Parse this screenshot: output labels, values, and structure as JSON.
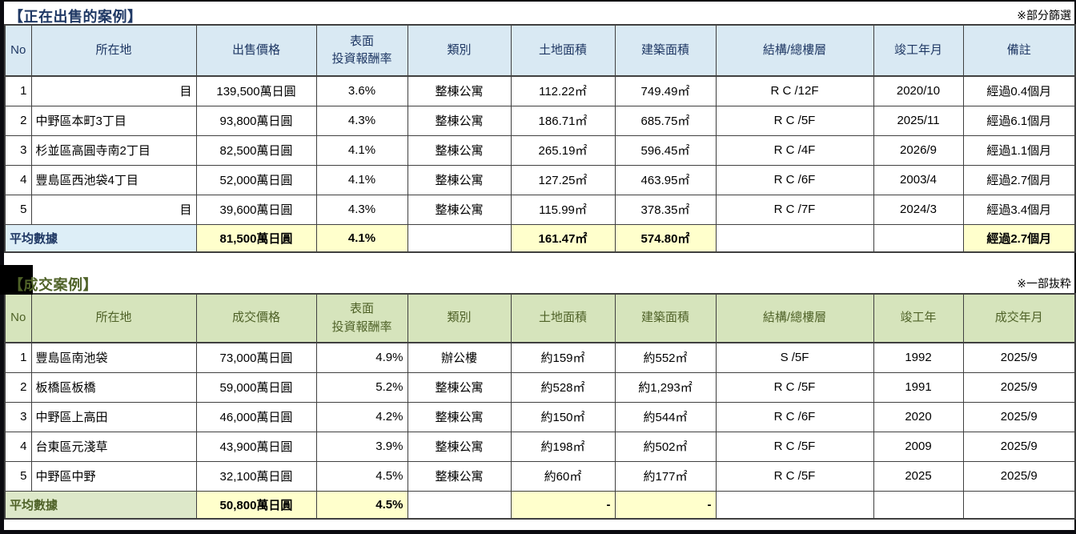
{
  "theme": {
    "navy": "#1f3864",
    "blue_header_bg": "#d9e9f3",
    "blue_label_bg": "#ddeef7",
    "green": "#4f6228",
    "green_header_bg": "#d6e4bc",
    "green_label_bg": "#dde8c9",
    "highlight_bg": "#ffffcc",
    "grid": "#404040",
    "frame": "#0b0b10"
  },
  "tables": [
    {
      "id": "for-sale",
      "title": "【正在出售的案例】",
      "note": "※部分篩選",
      "columns": [
        {
          "label": "No",
          "align": "r"
        },
        {
          "label": "所在地",
          "align": "l"
        },
        {
          "label": "出售價格",
          "align": "c"
        },
        {
          "label": "表面\n投資報酬率",
          "align": "c"
        },
        {
          "label": "類別",
          "align": "c"
        },
        {
          "label": "土地面積",
          "align": "c"
        },
        {
          "label": "建築面積",
          "align": "c"
        },
        {
          "label": "結構/總樓層",
          "align": "c"
        },
        {
          "label": "竣工年月",
          "align": "c"
        },
        {
          "label": "備註",
          "align": "c"
        }
      ],
      "rows": [
        [
          "1",
          {
            "t": "目",
            "al": "r"
          },
          "139,500萬日圓",
          "3.6%",
          "整棟公寓",
          "112.22㎡",
          "749.49㎡",
          "R C /12F",
          "2020/10",
          "經過0.4個月"
        ],
        [
          "2",
          "中野區本町3丁目",
          "93,800萬日圓",
          "4.3%",
          "整棟公寓",
          "186.71㎡",
          "685.75㎡",
          "R C /5F",
          "2025/11",
          "經過6.1個月"
        ],
        [
          "3",
          "杉並區高圓寺南2丁目",
          "82,500萬日圓",
          "4.1%",
          "整棟公寓",
          "265.19㎡",
          "596.45㎡",
          "R C /4F",
          "2026/9",
          "經過1.1個月"
        ],
        [
          "4",
          "豐島區西池袋4丁目",
          "52,000萬日圓",
          "4.1%",
          "整棟公寓",
          "127.25㎡",
          "463.95㎡",
          "R C /6F",
          "2003/4",
          "經過2.7個月"
        ],
        [
          "5",
          {
            "t": "目",
            "al": "r"
          },
          "39,600萬日圓",
          "4.3%",
          "整棟公寓",
          "115.99㎡",
          "378.35㎡",
          "R C /7F",
          "2024/3",
          "經過3.4個月"
        ]
      ],
      "summary": {
        "label": "平均數據",
        "cells": [
          {
            "t": "81,500萬日圓",
            "hl": true
          },
          {
            "t": "4.1%",
            "hl": true
          },
          {
            "t": ""
          },
          {
            "t": "161.47㎡",
            "hl": true
          },
          {
            "t": "574.80㎡",
            "hl": true
          },
          {
            "t": ""
          },
          {
            "t": ""
          },
          {
            "t": "經過2.7個月",
            "hl": true
          }
        ]
      }
    },
    {
      "id": "sold",
      "title": "【成交案例】",
      "note": "※一部抜粋",
      "columns": [
        {
          "label": "No",
          "align": "r"
        },
        {
          "label": "所在地",
          "align": "l"
        },
        {
          "label": "成交價格",
          "align": "c"
        },
        {
          "label": "表面\n投資報酬率",
          "align": "r"
        },
        {
          "label": "類別",
          "align": "c"
        },
        {
          "label": "土地面積",
          "align": "c"
        },
        {
          "label": "建築面積",
          "align": "c"
        },
        {
          "label": "結構/總樓層",
          "align": "c"
        },
        {
          "label": "竣工年",
          "align": "c"
        },
        {
          "label": "成交年月",
          "align": "c"
        }
      ],
      "rows": [
        [
          "1",
          "豐島區南池袋",
          "73,000萬日圓",
          "4.9%",
          "辦公樓",
          "約159㎡",
          "約552㎡",
          "S /5F",
          "1992",
          "2025/9"
        ],
        [
          "2",
          "板橋區板橋",
          "59,000萬日圓",
          "5.2%",
          "整棟公寓",
          "約528㎡",
          "約1,293㎡",
          "R C /5F",
          "1991",
          "2025/9"
        ],
        [
          "3",
          "中野區上高田",
          "46,000萬日圓",
          "4.2%",
          "整棟公寓",
          "約150㎡",
          "約544㎡",
          "R C /6F",
          "2020",
          "2025/9"
        ],
        [
          "4",
          "台東區元淺草",
          "43,900萬日圓",
          "3.9%",
          "整棟公寓",
          "約198㎡",
          "約502㎡",
          "R C /5F",
          "2009",
          "2025/9"
        ],
        [
          "5",
          "中野區中野",
          "32,100萬日圓",
          "4.5%",
          "整棟公寓",
          "約60㎡",
          "約177㎡",
          "R C /5F",
          "2025",
          "2025/9"
        ]
      ],
      "summary": {
        "label": "平均數據",
        "cells": [
          {
            "t": "50,800萬日圓",
            "hl": true
          },
          {
            "t": "4.5%",
            "hl": true,
            "al": "r"
          },
          {
            "t": ""
          },
          {
            "t": "-",
            "hl": true,
            "al": "r"
          },
          {
            "t": "-",
            "hl": true,
            "al": "r"
          },
          {
            "t": ""
          },
          {
            "t": ""
          },
          {
            "t": ""
          }
        ]
      }
    }
  ]
}
